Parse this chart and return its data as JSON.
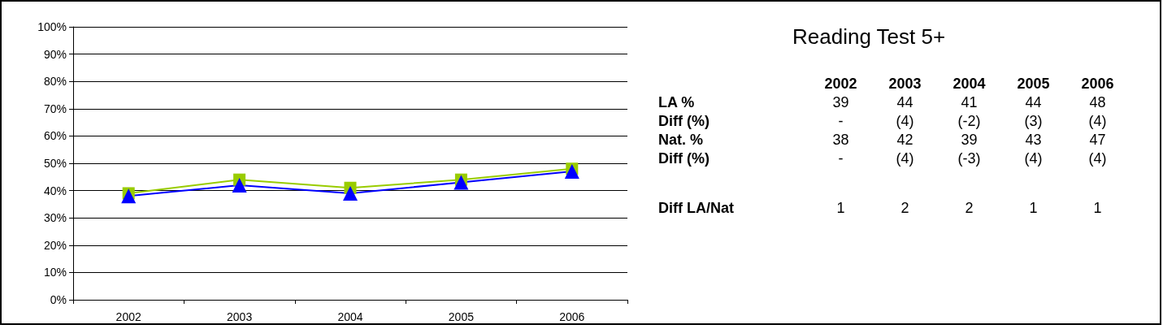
{
  "chart_data": {
    "type": "line",
    "title": "Reading Test 5+",
    "categories": [
      "2002",
      "2003",
      "2004",
      "2005",
      "2006"
    ],
    "series": [
      {
        "name": "LA %",
        "color": "#99cc00",
        "marker": "square",
        "values": [
          39,
          44,
          41,
          44,
          48
        ]
      },
      {
        "name": "Nat. %",
        "color": "#0000ff",
        "marker": "triangle",
        "values": [
          38,
          42,
          39,
          43,
          47
        ]
      }
    ],
    "ylim": [
      0,
      100
    ],
    "yticks": [
      {
        "value": 0,
        "label": "0%"
      },
      {
        "value": 10,
        "label": "10%"
      },
      {
        "value": 20,
        "label": "20%"
      },
      {
        "value": 30,
        "label": "30%"
      },
      {
        "value": 40,
        "label": "40%"
      },
      {
        "value": 50,
        "label": "50%"
      },
      {
        "value": 60,
        "label": "60%"
      },
      {
        "value": 70,
        "label": "70%"
      },
      {
        "value": 80,
        "label": "80%"
      },
      {
        "value": 90,
        "label": "90%"
      },
      {
        "value": 100,
        "label": "100%"
      }
    ],
    "grid": "y",
    "legend": false,
    "line_style": "solid",
    "annotations": [
      "39",
      "44",
      "41",
      "44",
      "48",
      "Diff (%)",
      "-",
      "(4)",
      "(-2)",
      "(3)",
      "(4)",
      "38",
      "42",
      "39",
      "43",
      "47",
      "Diff (%)",
      "-",
      "(4)",
      "(-3)",
      "(4)",
      "(4)",
      "Diff LA/Nat",
      "1",
      "2",
      "2",
      "1",
      "1"
    ]
  }
}
